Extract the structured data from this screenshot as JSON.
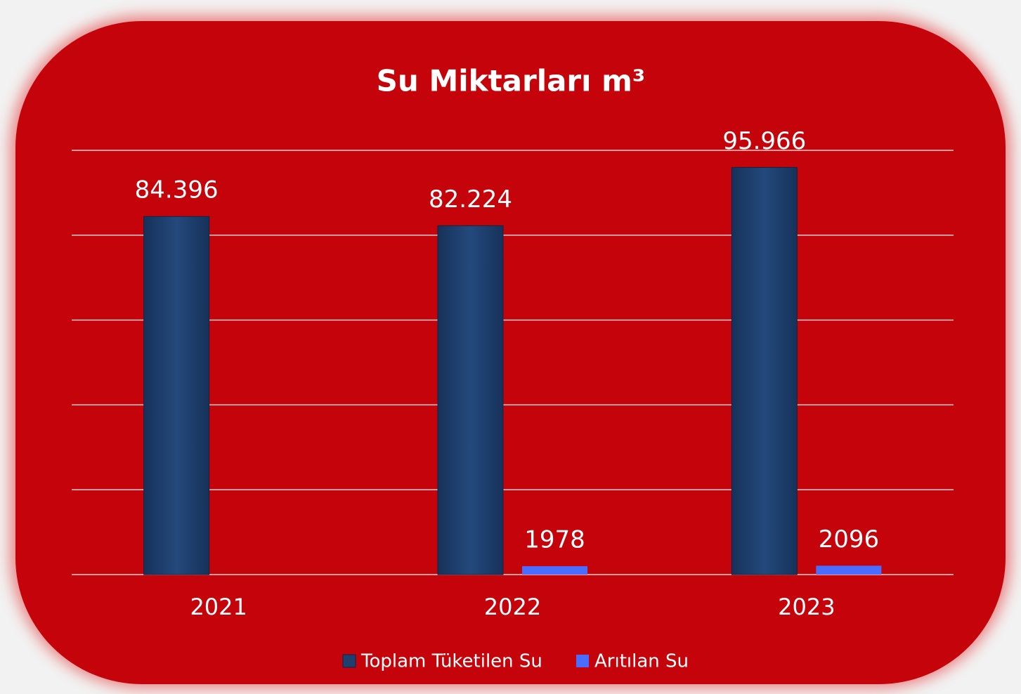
{
  "chart_data": {
    "type": "bar",
    "title": "Su Miktarları m³",
    "categories": [
      "2021",
      "2022",
      "2023"
    ],
    "series": [
      {
        "name": "Toplam Tüketilen Su",
        "color": "#1f3f6e",
        "values": [
          84396,
          82224,
          95966
        ],
        "value_labels": [
          "84.396",
          "82.224",
          "95.966"
        ]
      },
      {
        "name": "Arıtılan Su",
        "color": "#4a6cff",
        "values": [
          null,
          1978,
          2096
        ]
      }
    ],
    "ylim": [
      0,
      100000
    ],
    "yticks": [
      0,
      20000,
      40000,
      60000,
      80000,
      100000
    ],
    "grid": true,
    "legend": "bottom"
  }
}
